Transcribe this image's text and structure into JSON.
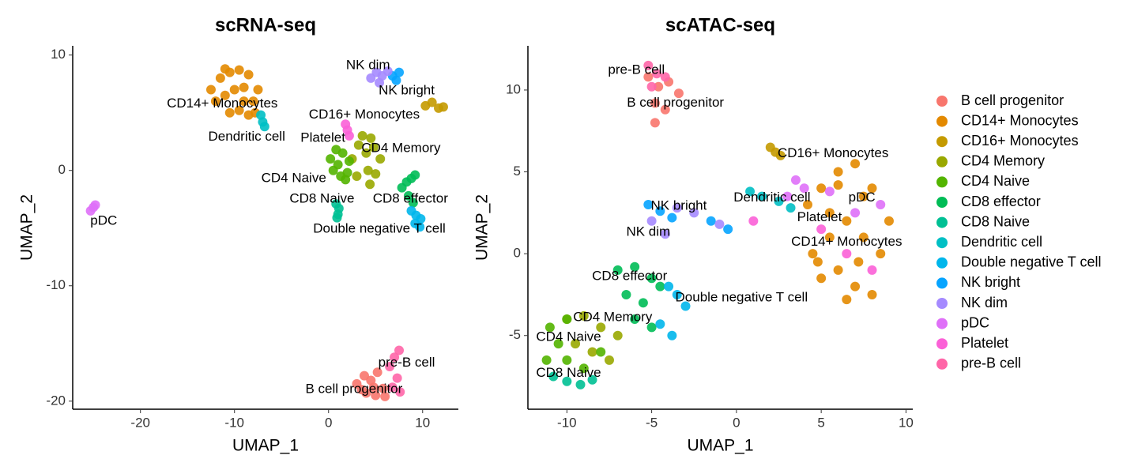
{
  "chart_data": [
    {
      "type": "scatter",
      "title": "scRNA-seq",
      "xlabel": "UMAP_1",
      "ylabel": "UMAP_2",
      "xlim": [
        -27.2,
        13.8
      ],
      "ylim": [
        -20.7,
        10.8
      ],
      "xticks": [
        -20,
        -10,
        0,
        10
      ],
      "yticks": [
        -20,
        -10,
        0,
        10
      ],
      "series": [
        {
          "color": "#F8766D",
          "x": [
            3,
            3.8,
            4.5,
            5.2,
            5.8,
            4,
            5,
            3.5,
            6,
            4.8
          ],
          "values": [
            -18.5,
            -17.8,
            -18.2,
            -17.5,
            -18.9,
            -19.3,
            -19.5,
            -19,
            -19.6,
            -18.8
          ]
        },
        {
          "color": "#E38900",
          "x": [
            -12.5,
            -11.5,
            -10.5,
            -9.5,
            -8.5,
            -7.5,
            -12,
            -11,
            -10,
            -9,
            -8,
            -10.5,
            -9.5,
            -8.5,
            -11,
            -9,
            -7.8
          ],
          "values": [
            7,
            8,
            8.5,
            8.7,
            8.3,
            7,
            6,
            6.5,
            7,
            7.2,
            6,
            5,
            5.2,
            4.8,
            8.8,
            6,
            5
          ]
        },
        {
          "color": "#C49A00",
          "x": [
            10.3,
            11,
            11.7,
            12.2
          ],
          "values": [
            5.6,
            5.9,
            5.4,
            5.5
          ]
        },
        {
          "color": "#99A800",
          "x": [
            2.5,
            3.2,
            4,
            4.8,
            5.5,
            3,
            4.2,
            5,
            3.6,
            4.5,
            4.4
          ],
          "values": [
            1,
            2.2,
            1.5,
            2,
            1,
            -0.5,
            0,
            -0.3,
            3,
            2.8,
            -1.2
          ]
        },
        {
          "color": "#53B400",
          "x": [
            0.2,
            0.8,
            1.5,
            2.2,
            0.5,
            1.3,
            2,
            1,
            1.8
          ],
          "values": [
            1,
            1.8,
            1.5,
            0.8,
            0,
            -0.5,
            -0.2,
            0.5,
            -0.8
          ]
        },
        {
          "color": "#00BC56",
          "x": [
            7.8,
            8.3,
            8.8,
            9.2,
            8.5,
            9
          ],
          "values": [
            -1.5,
            -1,
            -0.7,
            -0.4,
            -2.2,
            -2.8
          ]
        },
        {
          "color": "#00C094",
          "x": [
            0.8,
            1.1,
            1,
            0.9
          ],
          "values": [
            -2.9,
            -3.3,
            -3.8,
            -4.1
          ]
        },
        {
          "color": "#00BFC4",
          "x": [
            -7.2,
            -7,
            -6.8
          ],
          "values": [
            4.8,
            4.2,
            3.8
          ]
        },
        {
          "color": "#00B6EB",
          "x": [
            8.8,
            9.3,
            9.8,
            9.2,
            9.7
          ],
          "values": [
            -3.5,
            -3.9,
            -4.2,
            -4.6,
            -4.9
          ]
        },
        {
          "color": "#06A4FF",
          "x": [
            6.8,
            7.2,
            7.5
          ],
          "values": [
            8.2,
            7.8,
            8.5
          ]
        },
        {
          "color": "#A58AFF",
          "x": [
            4.5,
            5.1,
            5.7,
            6.3,
            5.4
          ],
          "values": [
            8,
            8.5,
            8.2,
            8.6,
            7.6
          ]
        },
        {
          "color": "#DF70F8",
          "x": [
            -25.3,
            -25,
            -24.8
          ],
          "values": [
            -3.5,
            -3.2,
            -3
          ]
        },
        {
          "color": "#FB61D7",
          "x": [
            1.8,
            2,
            2.2
          ],
          "values": [
            4,
            3.5,
            3
          ]
        },
        {
          "color": "#FF66A8",
          "x": [
            6.5,
            7,
            7.5,
            7.3,
            6.8,
            7.6
          ],
          "values": [
            -17,
            -16.2,
            -15.6,
            -18,
            -18.8,
            -19.2
          ]
        }
      ],
      "annotations": [
        {
          "text": "NK dim",
          "x": 4.2,
          "y": 9.1
        },
        {
          "text": "NK bright",
          "x": 8.3,
          "y": 6.9
        },
        {
          "text": "CD14+ Monocytes",
          "x": -11.3,
          "y": 5.75
        },
        {
          "text": "CD16+ Monocytes",
          "x": 3.8,
          "y": 4.8
        },
        {
          "text": "Dendritic cell",
          "x": -8.7,
          "y": 2.9
        },
        {
          "text": "Platelet",
          "x": -0.6,
          "y": 2.8
        },
        {
          "text": "CD4 Memory",
          "x": 7.7,
          "y": 1.9
        },
        {
          "text": "CD4 Naive",
          "x": -3.7,
          "y": -0.7
        },
        {
          "text": "CD8 Naive",
          "x": -0.7,
          "y": -2.5
        },
        {
          "text": "CD8 effector",
          "x": 8.7,
          "y": -2.5
        },
        {
          "text": "Double negative T cell",
          "x": 5.4,
          "y": -5.1
        },
        {
          "text": "pDC",
          "x": -23.9,
          "y": -4.4
        },
        {
          "text": "pre-B cell",
          "x": 8.3,
          "y": -16.7
        },
        {
          "text": "B cell progenitor",
          "x": 2.7,
          "y": -19.0
        }
      ]
    },
    {
      "type": "scatter",
      "title": "scATAC-seq",
      "xlabel": "UMAP_1",
      "ylabel": "UMAP_2",
      "xlim": [
        -12.3,
        10.4
      ],
      "ylim": [
        -9.5,
        12.7
      ],
      "xticks": [
        -10,
        -5,
        0,
        5,
        10
      ],
      "yticks": [
        -5,
        0,
        5,
        10
      ],
      "legend": "right",
      "series": [
        {
          "name": "B cell progenitor",
          "color": "#F8766D",
          "x": [
            -5.2,
            -4.6,
            -4,
            -3.4,
            -4.8,
            -4.2,
            -4.8
          ],
          "values": [
            10.8,
            10.2,
            10.5,
            9.8,
            9.2,
            8.8,
            8
          ]
        },
        {
          "name": "CD14+ Monocytes",
          "color": "#E38900",
          "x": [
            4.2,
            5,
            6,
            7,
            8,
            9,
            4.5,
            5.5,
            6.5,
            7.5,
            8.5,
            5,
            6,
            7,
            8,
            5.5,
            6.5,
            7.5,
            4.8,
            6,
            7.2
          ],
          "values": [
            3,
            4,
            5,
            5.5,
            4,
            2,
            0,
            1,
            2,
            1,
            0,
            -1.5,
            -1,
            -2,
            -2.5,
            2.5,
            -2.8,
            3.5,
            -0.5,
            4.2,
            -0.5
          ]
        },
        {
          "name": "CD16+ Monocytes",
          "color": "#C49A00",
          "x": [
            2,
            2.3,
            2.6
          ],
          "values": [
            6.5,
            6.2,
            6
          ]
        },
        {
          "name": "CD4 Memory",
          "color": "#99A800",
          "x": [
            -10,
            -9,
            -8,
            -7,
            -8.5,
            -7.5,
            -9.5
          ],
          "values": [
            -4,
            -3.8,
            -4.5,
            -5,
            -6,
            -6.5,
            -5.5
          ]
        },
        {
          "name": "CD4 Naive",
          "color": "#53B400",
          "x": [
            -11,
            -10.5,
            -10,
            -9,
            -8,
            -11.2,
            -10
          ],
          "values": [
            -4.5,
            -5.5,
            -6.5,
            -7,
            -6,
            -6.5,
            -4
          ]
        },
        {
          "name": "CD8 effector",
          "color": "#00BC56",
          "x": [
            -7,
            -6,
            -5,
            -4.5,
            -6.5,
            -5.5,
            -6,
            -5
          ],
          "values": [
            -1,
            -0.8,
            -1.5,
            -2,
            -2.5,
            -3,
            -4,
            -4.5
          ]
        },
        {
          "name": "CD8 Naive",
          "color": "#00C094",
          "x": [
            -10.8,
            -10,
            -9.2,
            -8.5
          ],
          "values": [
            -7.5,
            -7.8,
            -8,
            -7.7
          ]
        },
        {
          "name": "Dendritic cell",
          "color": "#00BFC4",
          "x": [
            0.8,
            1.5,
            2.5,
            3.2
          ],
          "values": [
            3.8,
            3.5,
            3.2,
            2.8
          ]
        },
        {
          "name": "Double negative T cell",
          "color": "#00B6EB",
          "x": [
            -4,
            -3.5,
            -3,
            -4.5,
            -3.8
          ],
          "values": [
            -2,
            -2.5,
            -3.2,
            -4.3,
            -5
          ]
        },
        {
          "name": "NK bright",
          "color": "#06A4FF",
          "x": [
            -5.2,
            -4.5,
            -3.8,
            -1.5,
            -0.5
          ],
          "values": [
            3,
            2.6,
            2.2,
            2,
            1.5
          ]
        },
        {
          "name": "NK dim",
          "color": "#A58AFF",
          "x": [
            -5,
            -4.2,
            -3.5,
            -2.5,
            -1
          ],
          "values": [
            2,
            1.2,
            2.8,
            2.5,
            1.8
          ]
        },
        {
          "name": "pDC",
          "color": "#DF70F8",
          "x": [
            3,
            4,
            5.5,
            7,
            8.5,
            3.5
          ],
          "values": [
            3.5,
            4,
            3.8,
            2.5,
            3,
            4.5
          ]
        },
        {
          "name": "Platelet",
          "color": "#FB61D7",
          "x": [
            1,
            5,
            6.5,
            8
          ],
          "values": [
            2,
            1.5,
            0,
            -1
          ]
        },
        {
          "name": "pre-B cell",
          "color": "#FF66A8",
          "x": [
            -5.2,
            -4.7,
            -4.2,
            -5
          ],
          "values": [
            11.5,
            11,
            10.8,
            10.2
          ]
        }
      ],
      "annotations": [
        {
          "text": "pre-B cell",
          "x": -5.9,
          "y": 11.2
        },
        {
          "text": "B cell progenitor",
          "x": -3.6,
          "y": 9.2
        },
        {
          "text": "CD16+ Monocytes",
          "x": 5.7,
          "y": 6.1
        },
        {
          "text": "Dendritic cell",
          "x": 2.1,
          "y": 3.4
        },
        {
          "text": "pDC",
          "x": 7.4,
          "y": 3.4
        },
        {
          "text": "NK bright",
          "x": -3.4,
          "y": 2.9
        },
        {
          "text": "Platelet",
          "x": 4.9,
          "y": 2.2
        },
        {
          "text": "NK dim",
          "x": -5.2,
          "y": 1.3
        },
        {
          "text": "CD14+ Monocytes",
          "x": 6.5,
          "y": 0.7
        },
        {
          "text": "CD8 effector",
          "x": -6.3,
          "y": -1.4
        },
        {
          "text": "Double negative T cell",
          "x": 0.3,
          "y": -2.7
        },
        {
          "text": "CD4 Memory",
          "x": -7.3,
          "y": -3.9
        },
        {
          "text": "CD4 Naive",
          "x": -9.9,
          "y": -5.1
        },
        {
          "text": "CD8 Naive",
          "x": -9.9,
          "y": -7.3
        }
      ]
    }
  ]
}
